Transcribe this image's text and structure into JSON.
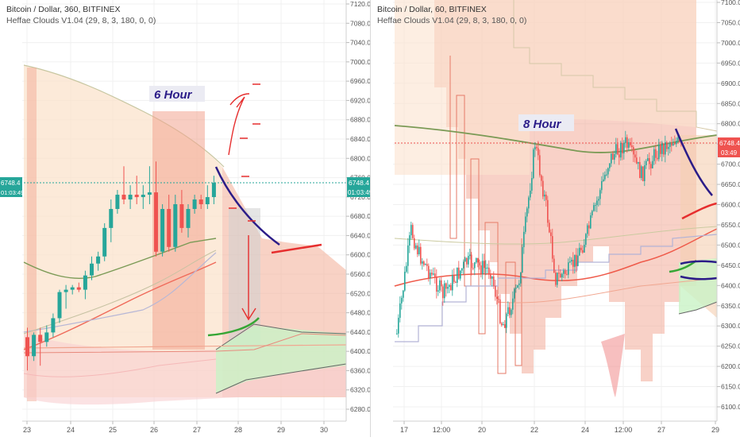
{
  "charts": [
    {
      "id": "left",
      "title": "Bitcoin / Dollar, 360, BITFINEX",
      "indicator": "Heffae Clouds V1.04 (29, 8, 3, 180, 0, 0)",
      "annotation": "6 Hour",
      "price_label": "6748.4",
      "countdown_label": "01:03:49",
      "price_tag_color": "#26a69a",
      "y_ticks": [
        "7120.0",
        "7080.0",
        "7040.0",
        "7000.0",
        "6960.0",
        "6920.0",
        "6880.0",
        "6840.0",
        "6800.0",
        "6760.0",
        "6720.0",
        "6680.0",
        "6640.0",
        "6600.0",
        "6560.0",
        "6520.0",
        "6480.0",
        "6440.0",
        "6400.0",
        "6360.0",
        "6320.0",
        "6280.0"
      ],
      "x_ticks": [
        "23",
        "24",
        "25",
        "26",
        "27",
        "28",
        "29",
        "30"
      ]
    },
    {
      "id": "right",
      "title": "Bitcoin / Dollar, 60, BITFINEX",
      "indicator": "Heffae Clouds V1.04 (29, 8, 3, 180, 0, 0)",
      "annotation": "8 Hour",
      "price_label": "6748.4",
      "countdown_label": "03:49",
      "price_tag_color": "#ef5350",
      "y_ticks": [
        "7100.0",
        "7050.0",
        "7000.0",
        "6950.0",
        "6900.0",
        "6850.0",
        "6800.0",
        "6750.0",
        "6700.0",
        "6650.0",
        "6600.0",
        "6550.0",
        "6500.0",
        "6450.0",
        "6400.0",
        "6350.0",
        "6300.0",
        "6250.0",
        "6200.0",
        "6150.0",
        "6100.0"
      ],
      "x_ticks": [
        "17",
        "12:00",
        "20",
        "22",
        "24",
        "12:00",
        "27",
        "29"
      ]
    }
  ],
  "chart_data": [
    {
      "type": "candlestick",
      "title": "Bitcoin / Dollar, 360, BITFINEX",
      "ylim": [
        6260,
        7130
      ],
      "candles": [
        [
          6420,
          6440,
          6350,
          6380
        ],
        [
          6380,
          6430,
          6370,
          6425
        ],
        [
          6425,
          6440,
          6360,
          6410
        ],
        [
          6410,
          6445,
          6400,
          6430
        ],
        [
          6430,
          6470,
          6420,
          6460
        ],
        [
          6460,
          6520,
          6450,
          6515
        ],
        [
          6515,
          6530,
          6480,
          6520
        ],
        [
          6520,
          6530,
          6510,
          6525
        ],
        [
          6525,
          6535,
          6515,
          6520
        ],
        [
          6520,
          6560,
          6500,
          6550
        ],
        [
          6550,
          6590,
          6540,
          6575
        ],
        [
          6575,
          6600,
          6560,
          6590
        ],
        [
          6590,
          6660,
          6580,
          6650
        ],
        [
          6650,
          6710,
          6620,
          6690
        ],
        [
          6690,
          6730,
          6680,
          6720
        ],
        [
          6720,
          6780,
          6700,
          6710
        ],
        [
          6710,
          6740,
          6690,
          6720
        ],
        [
          6720,
          6760,
          6700,
          6715
        ],
        [
          6715,
          6740,
          6690,
          6720
        ],
        [
          6720,
          6780,
          6700,
          6725
        ],
        [
          6725,
          6790,
          6590,
          6600
        ],
        [
          6600,
          6700,
          6590,
          6690
        ],
        [
          6690,
          6720,
          6600,
          6610
        ],
        [
          6610,
          6720,
          6600,
          6700
        ],
        [
          6700,
          6730,
          6640,
          6650
        ],
        [
          6650,
          6700,
          6630,
          6690
        ],
        [
          6690,
          6720,
          6680,
          6710
        ],
        [
          6710,
          6720,
          6690,
          6700
        ],
        [
          6700,
          6740,
          6690,
          6715
        ],
        [
          6715,
          6760,
          6700,
          6745
        ]
      ]
    },
    {
      "type": "candlestick",
      "title": "Bitcoin / Dollar, 60, BITFINEX",
      "ylim": [
        6080,
        7110
      ]
    }
  ]
}
